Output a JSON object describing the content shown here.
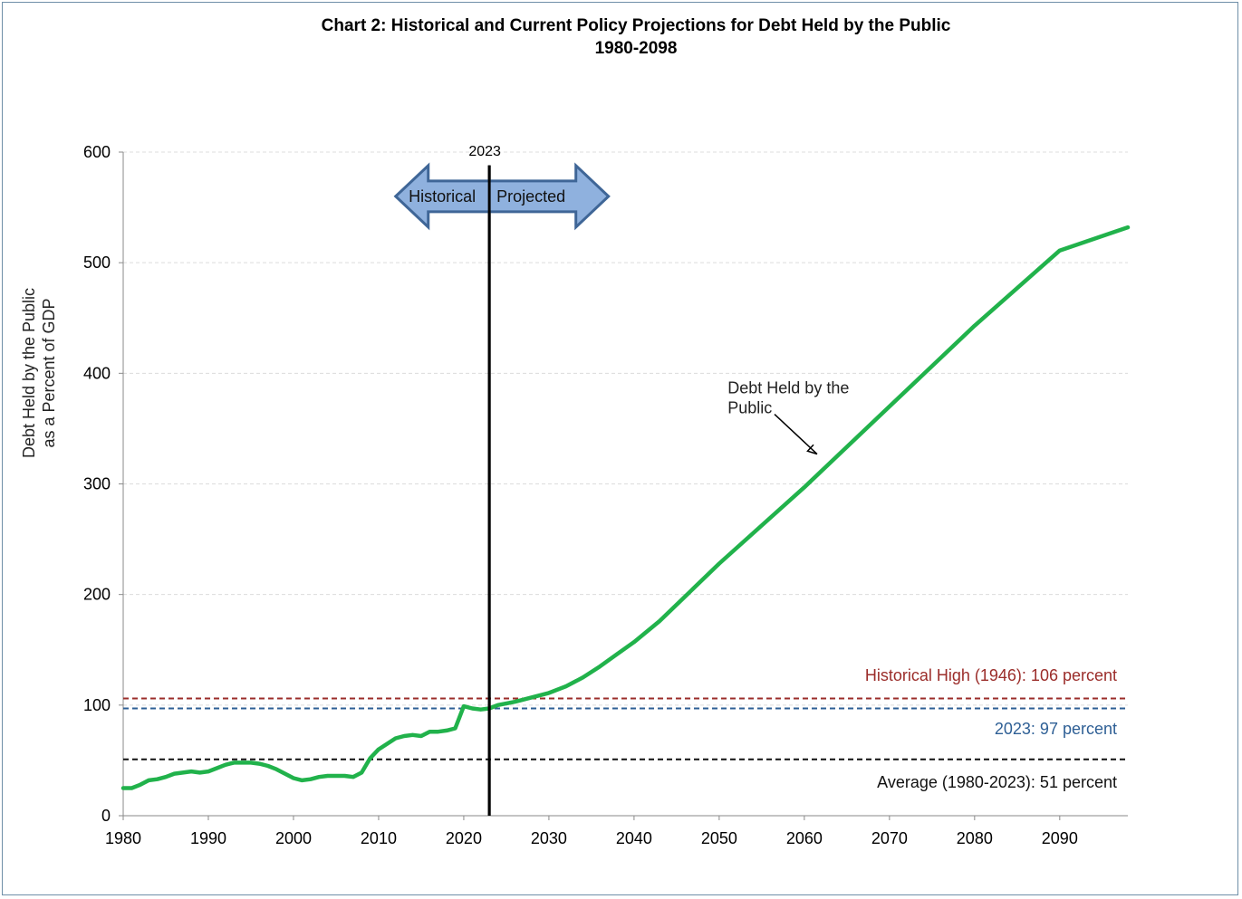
{
  "chart_data": {
    "type": "line",
    "title": "Chart 2:  Historical and Current Policy Projections for Debt Held by the Public",
    "subtitle": "1980-2098",
    "xlabel": "",
    "ylabel_line1": "Debt Held by the Public",
    "ylabel_line2": "as a Percent of GDP",
    "xlim": [
      1980,
      2098
    ],
    "ylim": [
      0,
      600
    ],
    "x_ticks": [
      1980,
      1990,
      2000,
      2010,
      2020,
      2030,
      2040,
      2050,
      2060,
      2070,
      2080,
      2090
    ],
    "y_ticks": [
      0,
      100,
      200,
      300,
      400,
      500,
      600
    ],
    "grid": "horizontal",
    "series": [
      {
        "name": "Debt Held by the Public",
        "color": "#21b24b",
        "x": [
          1980,
          1981,
          1982,
          1983,
          1984,
          1985,
          1986,
          1987,
          1988,
          1989,
          1990,
          1991,
          1992,
          1993,
          1994,
          1995,
          1996,
          1997,
          1998,
          1999,
          2000,
          2001,
          2002,
          2003,
          2004,
          2005,
          2006,
          2007,
          2008,
          2009,
          2010,
          2011,
          2012,
          2013,
          2014,
          2015,
          2016,
          2017,
          2018,
          2019,
          2020,
          2021,
          2022,
          2023,
          2024,
          2026,
          2028,
          2030,
          2032,
          2034,
          2036,
          2038,
          2040,
          2043,
          2050,
          2060,
          2070,
          2080,
          2090,
          2098
        ],
        "y": [
          25,
          25,
          28,
          32,
          33,
          35,
          38,
          39,
          40,
          39,
          40,
          43,
          46,
          48,
          48,
          48,
          47,
          45,
          42,
          38,
          34,
          32,
          33,
          35,
          36,
          36,
          36,
          35,
          39,
          52,
          60,
          65,
          70,
          72,
          73,
          72,
          76,
          76,
          77,
          79,
          99,
          97,
          96,
          97,
          100,
          103,
          107,
          111,
          117,
          125,
          135,
          146,
          157,
          176,
          228,
          297,
          370,
          443,
          511,
          532
        ]
      }
    ],
    "reference_lines": [
      {
        "label": "Historical High (1946): 106 percent",
        "value": 106,
        "color": "#9b2d2a"
      },
      {
        "label": "2023: 97 percent",
        "value": 97,
        "color": "#2e5f95"
      },
      {
        "label": "Average (1980-2023): 51 percent",
        "value": 51,
        "color": "#111111"
      }
    ],
    "divider": {
      "year": 2023,
      "label": "2023"
    },
    "arrow": {
      "left_label": "Historical",
      "right_label": "Projected",
      "from_year": 2012,
      "to_year": 2037,
      "y_value": 560,
      "fill": "#8fb1de",
      "stroke": "#3f6697"
    },
    "annotation": {
      "line1": "Debt Held by the",
      "line2": "Public",
      "text_year": 2051,
      "text_value": 382,
      "pointer_from_year": 2056.5,
      "pointer_from_value": 363,
      "pointer_to_year": 2061.5,
      "pointer_to_value": 327
    }
  }
}
